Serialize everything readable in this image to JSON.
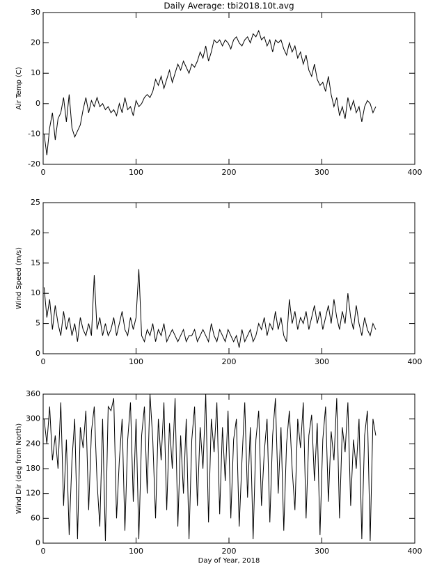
{
  "chart_data": [
    {
      "type": "line",
      "title": "Daily Average: tbi2018.10t.avg",
      "y_label": "Air Temp (C)",
      "color": "#000000",
      "x": [
        1,
        4,
        7,
        10,
        13,
        16,
        19,
        22,
        25,
        28,
        31,
        34,
        37,
        40,
        43,
        46,
        49,
        52,
        55,
        58,
        61,
        64,
        67,
        70,
        73,
        76,
        79,
        82,
        85,
        88,
        91,
        94,
        97,
        100,
        103,
        106,
        109,
        112,
        115,
        118,
        121,
        124,
        127,
        130,
        133,
        136,
        139,
        142,
        145,
        148,
        151,
        154,
        157,
        160,
        163,
        166,
        169,
        172,
        175,
        178,
        181,
        184,
        187,
        190,
        193,
        196,
        199,
        202,
        205,
        208,
        211,
        214,
        217,
        220,
        223,
        226,
        229,
        232,
        235,
        238,
        241,
        244,
        247,
        250,
        253,
        256,
        259,
        262,
        265,
        268,
        271,
        274,
        277,
        280,
        283,
        286,
        289,
        292,
        295,
        298,
        301,
        304,
        307,
        310,
        313,
        316,
        319,
        322,
        325,
        328,
        331,
        334,
        337,
        340,
        343,
        346,
        349,
        352,
        355,
        358
      ],
      "values": [
        -10,
        -17,
        -8,
        -3,
        -12,
        -5,
        -3,
        2,
        -6,
        3,
        -8,
        -11,
        -9,
        -7,
        -2,
        2,
        -3,
        1,
        -1,
        2,
        -1,
        0,
        -2,
        -1,
        -3,
        -2,
        -4,
        0,
        -3,
        2,
        -2,
        -1,
        -4,
        1,
        -1,
        0,
        2,
        3,
        2,
        4,
        8,
        6,
        9,
        5,
        8,
        11,
        7,
        10,
        13,
        11,
        14,
        12,
        10,
        13,
        12,
        14,
        17,
        15,
        19,
        14,
        17,
        21,
        20,
        21,
        19,
        21,
        20,
        18,
        21,
        22,
        20,
        19,
        21,
        22,
        20,
        23,
        22,
        24,
        21,
        22,
        19,
        21,
        17,
        21,
        20,
        21,
        18,
        16,
        20,
        17,
        19,
        15,
        17,
        13,
        16,
        11,
        9,
        13,
        8,
        6,
        7,
        4,
        9,
        3,
        -1,
        2,
        -4,
        -1,
        -5,
        2,
        -2,
        1,
        -3,
        -1,
        -6,
        -1,
        1,
        0,
        -3,
        -1
      ],
      "xlim": [
        0,
        400
      ],
      "xticks": [
        0,
        100,
        200,
        300,
        400
      ],
      "ylim": [
        -20,
        30
      ],
      "yticks": [
        -20,
        -10,
        0,
        10,
        20,
        30
      ]
    },
    {
      "type": "line",
      "y_label": "Wind Speed (m/s)",
      "color": "#000000",
      "x": [
        1,
        4,
        7,
        10,
        13,
        16,
        19,
        22,
        25,
        28,
        31,
        34,
        37,
        40,
        43,
        46,
        49,
        52,
        55,
        58,
        61,
        64,
        67,
        70,
        73,
        76,
        79,
        82,
        85,
        88,
        91,
        94,
        97,
        100,
        103,
        106,
        109,
        112,
        115,
        118,
        121,
        124,
        127,
        130,
        133,
        136,
        139,
        142,
        145,
        148,
        151,
        154,
        157,
        160,
        163,
        166,
        169,
        172,
        175,
        178,
        181,
        184,
        187,
        190,
        193,
        196,
        199,
        202,
        205,
        208,
        211,
        214,
        217,
        220,
        223,
        226,
        229,
        232,
        235,
        238,
        241,
        244,
        247,
        250,
        253,
        256,
        259,
        262,
        265,
        268,
        271,
        274,
        277,
        280,
        283,
        286,
        289,
        292,
        295,
        298,
        301,
        304,
        307,
        310,
        313,
        316,
        319,
        322,
        325,
        328,
        331,
        334,
        337,
        340,
        343,
        346,
        349,
        352,
        355,
        358
      ],
      "values": [
        11,
        6,
        9,
        4,
        8,
        5,
        3,
        7,
        4,
        6,
        3,
        5,
        2,
        6,
        4,
        3,
        5,
        3,
        13,
        4,
        6,
        3,
        5,
        3,
        4,
        6,
        3,
        5,
        7,
        4,
        3,
        6,
        4,
        6,
        14,
        3,
        2,
        4,
        3,
        5,
        2,
        4,
        3,
        5,
        2,
        3,
        4,
        3,
        2,
        3,
        4,
        2,
        3,
        3,
        4,
        2,
        3,
        4,
        3,
        2,
        5,
        3,
        2,
        4,
        3,
        2,
        4,
        3,
        2,
        3,
        1,
        4,
        2,
        3,
        4,
        2,
        3,
        5,
        4,
        6,
        3,
        5,
        4,
        7,
        4,
        6,
        3,
        2,
        9,
        5,
        7,
        4,
        6,
        5,
        7,
        4,
        6,
        8,
        5,
        7,
        4,
        6,
        8,
        5,
        9,
        6,
        4,
        7,
        5,
        10,
        6,
        4,
        8,
        5,
        3,
        6,
        4,
        3,
        5,
        4
      ],
      "xlim": [
        0,
        400
      ],
      "xticks": [
        0,
        100,
        200,
        300,
        400
      ],
      "ylim": [
        0,
        25
      ],
      "yticks": [
        0,
        5,
        10,
        15,
        20,
        25
      ]
    },
    {
      "type": "line",
      "y_label": "Wind Dir (deg from North)",
      "x_label": "Day of Year, 2018",
      "color": "#000000",
      "x": [
        1,
        4,
        7,
        10,
        13,
        16,
        19,
        22,
        25,
        28,
        31,
        34,
        37,
        40,
        43,
        46,
        49,
        52,
        55,
        58,
        61,
        64,
        67,
        70,
        73,
        76,
        79,
        82,
        85,
        88,
        91,
        94,
        97,
        100,
        103,
        106,
        109,
        112,
        115,
        118,
        121,
        124,
        127,
        130,
        133,
        136,
        139,
        142,
        145,
        148,
        151,
        154,
        157,
        160,
        163,
        166,
        169,
        172,
        175,
        178,
        181,
        184,
        187,
        190,
        193,
        196,
        199,
        202,
        205,
        208,
        211,
        214,
        217,
        220,
        223,
        226,
        229,
        232,
        235,
        238,
        241,
        244,
        247,
        250,
        253,
        256,
        259,
        262,
        265,
        268,
        271,
        274,
        277,
        280,
        283,
        286,
        289,
        292,
        295,
        298,
        301,
        304,
        307,
        310,
        313,
        316,
        319,
        322,
        325,
        328,
        331,
        334,
        337,
        340,
        343,
        346,
        349,
        352,
        355,
        358
      ],
      "values": [
        300,
        240,
        330,
        200,
        260,
        180,
        340,
        90,
        250,
        20,
        200,
        300,
        10,
        280,
        230,
        320,
        80,
        270,
        330,
        150,
        40,
        300,
        5,
        330,
        320,
        350,
        60,
        200,
        300,
        30,
        250,
        340,
        100,
        300,
        10,
        260,
        330,
        120,
        360,
        250,
        60,
        300,
        200,
        340,
        80,
        290,
        180,
        350,
        40,
        260,
        120,
        300,
        10,
        250,
        330,
        90,
        280,
        180,
        360,
        50,
        300,
        220,
        340,
        70,
        280,
        150,
        320,
        60,
        250,
        300,
        40,
        200,
        340,
        110,
        280,
        10,
        250,
        320,
        90,
        220,
        300,
        50,
        260,
        350,
        120,
        280,
        30,
        240,
        320,
        180,
        80,
        300,
        230,
        340,
        60,
        260,
        310,
        150,
        290,
        20,
        250,
        330,
        100,
        270,
        200,
        350,
        60,
        280,
        220,
        340,
        90,
        250,
        180,
        300,
        10,
        260,
        320,
        5,
        300,
        260
      ],
      "xlim": [
        0,
        400
      ],
      "xticks": [
        0,
        100,
        200,
        300,
        400
      ],
      "ylim": [
        0,
        360
      ],
      "yticks": [
        0,
        60,
        120,
        180,
        240,
        300,
        360
      ]
    }
  ]
}
